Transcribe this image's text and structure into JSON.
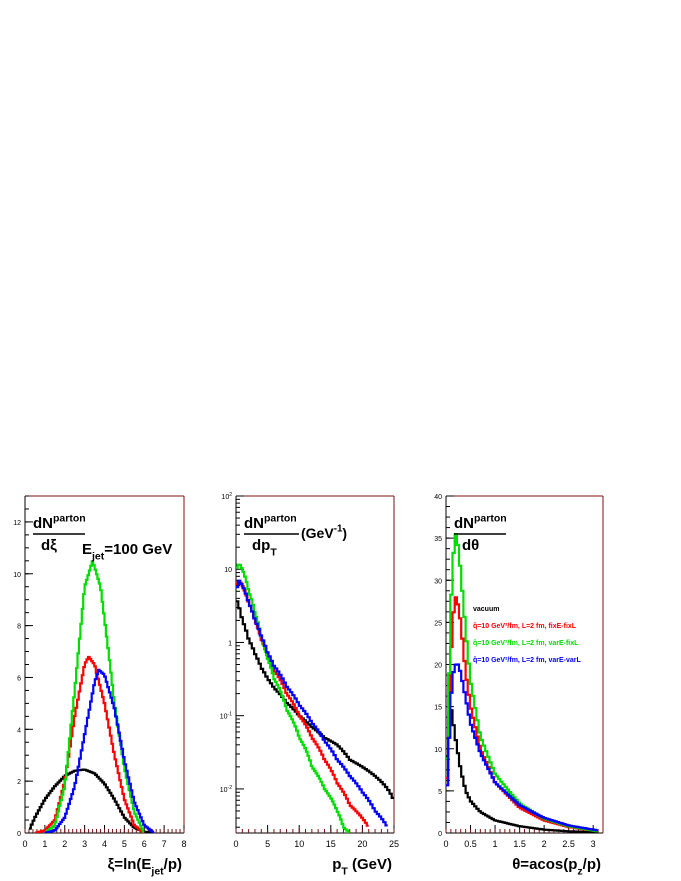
{
  "chart_data": [
    {
      "type": "line",
      "ylabel_num": "dN",
      "ylabel_num_sup": "parton",
      "ylabel_den": "dξ",
      "annotation_main": "E",
      "annotation_sub": "jet",
      "annotation_tail": "=100 GeV",
      "xlabel_main": "ξ=ln(E",
      "xlabel_sub": "jet",
      "xlabel_tail": "/p)",
      "xlim": [
        0,
        8
      ],
      "ylim": [
        0,
        13
      ],
      "xticks": [
        "0",
        "1",
        "2",
        "3",
        "4",
        "5",
        "6",
        "7",
        "8"
      ],
      "yticks": [
        "0",
        "2",
        "4",
        "6",
        "8",
        "10",
        "12"
      ],
      "series": [
        {
          "color": "#000000",
          "x": [
            0.2,
            0.5,
            1,
            1.5,
            2,
            2.5,
            3,
            3.5,
            4,
            4.5,
            5,
            5.5,
            6,
            6.5
          ],
          "y": [
            0.1,
            0.6,
            1.3,
            1.8,
            2.2,
            2.4,
            2.45,
            2.3,
            1.9,
            1.3,
            0.6,
            0.2,
            0.05,
            0
          ]
        },
        {
          "color": "#ff0000",
          "x": [
            0.5,
            1,
            1.5,
            2,
            2.5,
            3,
            3.2,
            3.5,
            4,
            4.5,
            5,
            5.5,
            6
          ],
          "y": [
            0,
            0.1,
            0.5,
            2,
            4.5,
            6.5,
            6.8,
            6.5,
            5,
            3,
            1.3,
            0.3,
            0
          ]
        },
        {
          "color": "#00dd00",
          "x": [
            1,
            1.5,
            2,
            2.5,
            3,
            3.4,
            3.8,
            4.2,
            4.5,
            5,
            5.5,
            6
          ],
          "y": [
            0,
            0.3,
            1.8,
            5.5,
            9.5,
            10.5,
            9.5,
            7,
            5,
            2.5,
            0.8,
            0
          ]
        },
        {
          "color": "#0000ff",
          "x": [
            1,
            1.5,
            2,
            2.5,
            3,
            3.5,
            3.7,
            4,
            4.5,
            5,
            5.5,
            6,
            6.5
          ],
          "y": [
            0,
            0.1,
            0.6,
            1.8,
            3.8,
            5.8,
            6.3,
            6.1,
            4.8,
            2.8,
            1.2,
            0.3,
            0
          ]
        }
      ]
    },
    {
      "type": "line",
      "log_y": true,
      "ylabel_num": "dN",
      "ylabel_num_sup": "parton",
      "ylabel_den": "dp",
      "ylabel_den_sub": "T",
      "ylabel_unit": "(GeV",
      "ylabel_unit_sup": "-1",
      "ylabel_unit_tail": ")",
      "xlabel_main": "p",
      "xlabel_sub": "T",
      "xlabel_tail": " (GeV)",
      "xlim": [
        0,
        25
      ],
      "ylim": [
        0.0025,
        100
      ],
      "xticks": [
        "0",
        "5",
        "10",
        "15",
        "20",
        "25"
      ],
      "yticks": [
        {
          "base": "10",
          "exp": "2"
        },
        {
          "base": "10",
          "exp": ""
        },
        {
          "base": "1",
          "exp": ""
        },
        {
          "base": "10",
          "exp": "-1"
        },
        {
          "base": "10",
          "exp": "-2"
        }
      ],
      "series": [
        {
          "color": "#000000",
          "x": [
            0,
            1,
            2,
            3,
            4,
            5,
            6,
            8,
            10,
            12,
            14,
            16,
            18,
            20,
            22,
            24,
            25
          ],
          "y": [
            4,
            2,
            1.1,
            0.7,
            0.45,
            0.32,
            0.24,
            0.15,
            0.1,
            0.07,
            0.05,
            0.04,
            0.025,
            0.02,
            0.015,
            0.01,
            0.007
          ]
        },
        {
          "color": "#ff0000",
          "x": [
            0,
            0.5,
            1,
            2,
            3,
            4,
            5,
            6,
            8,
            10,
            12,
            14,
            16,
            18,
            20,
            21
          ],
          "y": [
            6,
            7,
            6,
            3.5,
            2,
            1.1,
            0.65,
            0.42,
            0.2,
            0.1,
            0.05,
            0.025,
            0.012,
            0.006,
            0.004,
            0.003
          ]
        },
        {
          "color": "#00dd00",
          "x": [
            0,
            0.5,
            1,
            2,
            3,
            4,
            5,
            6,
            8,
            10,
            12,
            14,
            16,
            17,
            18
          ],
          "y": [
            10,
            12,
            10,
            5,
            2.5,
            1.2,
            0.6,
            0.32,
            0.12,
            0.05,
            0.02,
            0.01,
            0.005,
            0.003,
            0.0025
          ]
        },
        {
          "color": "#0000ff",
          "x": [
            0,
            0.5,
            1,
            2,
            3,
            4,
            5,
            6,
            8,
            10,
            12,
            14,
            16,
            18,
            20,
            22,
            24
          ],
          "y": [
            5,
            7,
            6,
            3.5,
            2,
            1.2,
            0.72,
            0.48,
            0.25,
            0.14,
            0.08,
            0.045,
            0.025,
            0.015,
            0.009,
            0.005,
            0.003
          ]
        }
      ]
    },
    {
      "type": "line",
      "ylabel_num": "dN",
      "ylabel_num_sup": "parton",
      "ylabel_den": "dθ",
      "xlabel_main": "θ=acos(p",
      "xlabel_sub": "z",
      "xlabel_tail": "/p)",
      "xlim": [
        0,
        3.2
      ],
      "ylim": [
        0,
        40
      ],
      "xticks": [
        "0",
        "0.5",
        "1",
        "1.5",
        "2",
        "2.5",
        "3"
      ],
      "yticks": [
        "0",
        "5",
        "10",
        "15",
        "20",
        "25",
        "30",
        "35",
        "40"
      ],
      "legend": [
        {
          "color": "#000000",
          "label": "vacuum"
        },
        {
          "color": "#ff0000",
          "label": "q̂=10 GeV²/fm, L=2 fm, fixE-fixL"
        },
        {
          "color": "#00dd00",
          "label": "q̂=10 GeV²/fm, L=2 fm, varE-fixL"
        },
        {
          "color": "#0000ff",
          "label": "q̂=10 GeV²/fm, L=2 fm, varE-varL"
        }
      ],
      "series": [
        {
          "color": "#000000",
          "x": [
            0,
            0.05,
            0.1,
            0.15,
            0.2,
            0.3,
            0.4,
            0.5,
            0.7,
            1,
            1.5,
            2,
            2.5,
            3.1
          ],
          "y": [
            6,
            13,
            15,
            13,
            11,
            7.5,
            5,
            3.8,
            2.5,
            1.5,
            0.8,
            0.4,
            0.2,
            0.1
          ]
        },
        {
          "color": "#ff0000",
          "x": [
            0,
            0.05,
            0.1,
            0.15,
            0.2,
            0.25,
            0.3,
            0.4,
            0.5,
            0.7,
            1,
            1.5,
            2,
            2.5,
            3.1
          ],
          "y": [
            3,
            11,
            21,
            26,
            28,
            27,
            25,
            19,
            15,
            10,
            6,
            3,
            1.5,
            0.7,
            0.2
          ]
        },
        {
          "color": "#00dd00",
          "x": [
            0,
            0.05,
            0.1,
            0.15,
            0.2,
            0.25,
            0.3,
            0.4,
            0.5,
            0.7,
            1,
            1.5,
            2,
            2.5,
            3.1
          ],
          "y": [
            4,
            15,
            27,
            33,
            35.5,
            34,
            31,
            24,
            18,
            11.5,
            7,
            3.5,
            1.7,
            0.8,
            0.2
          ]
        },
        {
          "color": "#0000ff",
          "x": [
            0,
            0.05,
            0.1,
            0.15,
            0.2,
            0.25,
            0.3,
            0.4,
            0.5,
            0.7,
            1,
            1.5,
            2,
            2.5,
            3.1
          ],
          "y": [
            3,
            9,
            16,
            19,
            20,
            20,
            19,
            16,
            13,
            9.5,
            6,
            3.3,
            1.8,
            0.9,
            0.3
          ]
        }
      ]
    }
  ]
}
